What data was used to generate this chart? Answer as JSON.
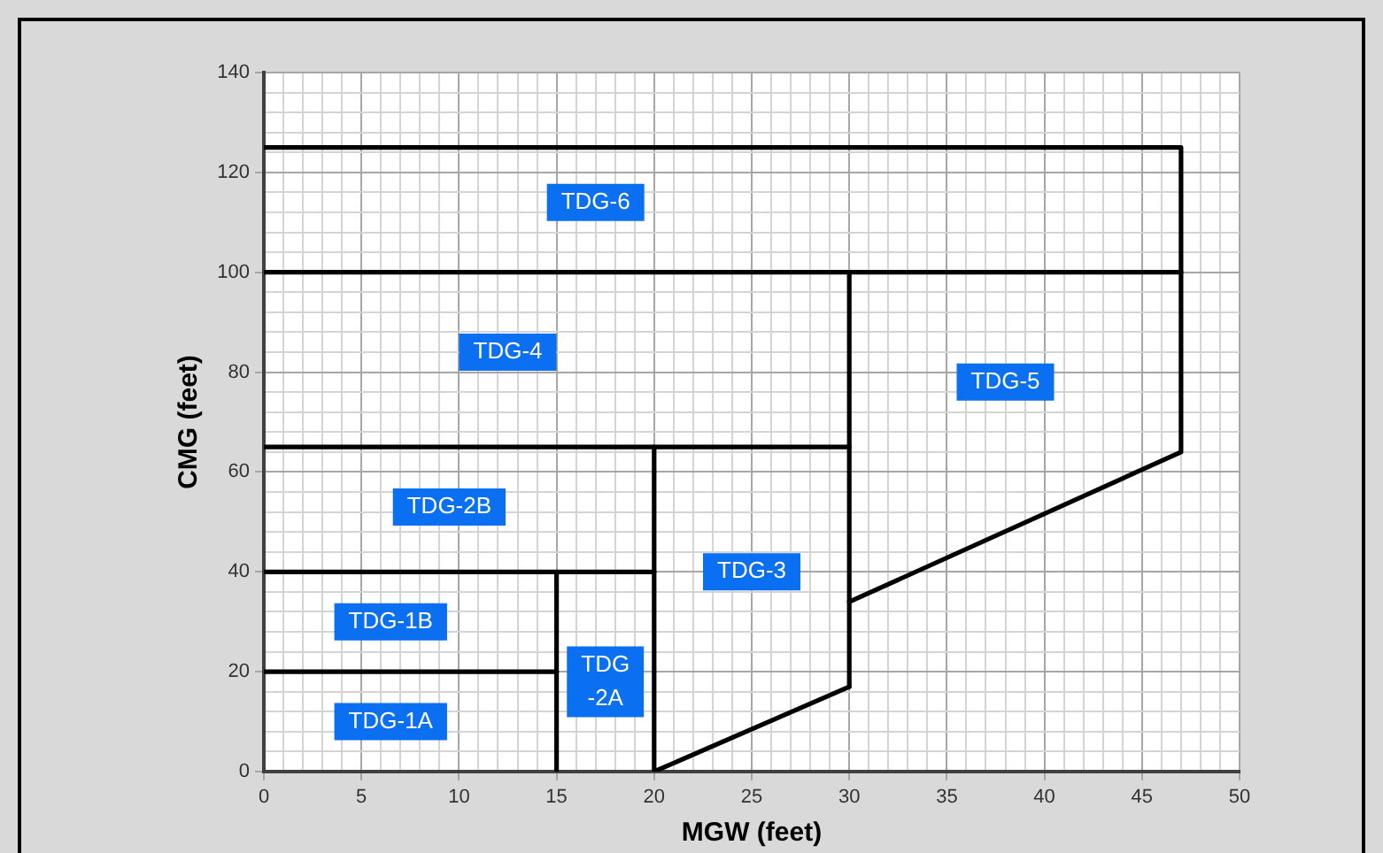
{
  "chart_data": {
    "type": "line",
    "xlabel": "MGW (feet)",
    "ylabel": "CMG (feet)",
    "xlim": [
      0,
      50
    ],
    "ylim": [
      0,
      140
    ],
    "xticks": [
      0,
      {
        "value": 1,
        "label": null
      },
      {
        "value": 2,
        "label": null
      },
      {
        "value": 3,
        "label": null
      },
      {
        "value": 4,
        "label": null
      },
      5,
      {
        "value": 6,
        "label": null
      },
      {
        "value": 7,
        "label": null
      },
      {
        "value": 8,
        "label": null
      },
      {
        "value": 9,
        "label": null
      },
      10,
      {
        "value": 11,
        "label": null
      },
      {
        "value": 12,
        "label": null
      },
      {
        "value": 13,
        "label": null
      },
      {
        "value": 14,
        "label": null
      },
      15,
      {
        "value": 16,
        "label": null
      },
      {
        "value": 17,
        "label": null
      },
      {
        "value": 18,
        "label": null
      },
      {
        "value": 19,
        "label": null
      },
      20,
      {
        "value": 21,
        "label": null
      },
      {
        "value": 22,
        "label": null
      },
      {
        "value": 23,
        "label": null
      },
      {
        "value": 24,
        "label": null
      },
      25,
      {
        "value": 26,
        "label": null
      },
      {
        "value": 27,
        "label": null
      },
      {
        "value": 28,
        "label": null
      },
      {
        "value": 29,
        "label": null
      },
      30,
      {
        "value": 31,
        "label": null
      },
      {
        "value": 32,
        "label": null
      },
      {
        "value": 33,
        "label": null
      },
      {
        "value": 34,
        "label": null
      },
      35,
      {
        "value": 36,
        "label": null
      },
      {
        "value": 37,
        "label": null
      },
      {
        "value": 38,
        "label": null
      },
      {
        "value": 39,
        "label": null
      },
      40,
      {
        "value": 41,
        "label": null
      },
      {
        "value": 42,
        "label": null
      },
      {
        "value": 43,
        "label": null
      },
      {
        "value": 44,
        "label": null
      },
      45,
      {
        "value": 46,
        "label": null
      },
      {
        "value": 47,
        "label": null
      },
      {
        "value": 48,
        "label": null
      },
      {
        "value": 49,
        "label": null
      },
      50
    ],
    "yticks": [
      0,
      {
        "value": 4,
        "label": null
      },
      {
        "value": 8,
        "label": null
      },
      {
        "value": 12,
        "label": null
      },
      {
        "value": 16,
        "label": null
      },
      20,
      {
        "value": 24,
        "label": null
      },
      {
        "value": 28,
        "label": null
      },
      {
        "value": 32,
        "label": null
      },
      {
        "value": 36,
        "label": null
      },
      40,
      {
        "value": 44,
        "label": null
      },
      {
        "value": 48,
        "label": null
      },
      {
        "value": 52,
        "label": null
      },
      {
        "value": 56,
        "label": null
      },
      60,
      {
        "value": 64,
        "label": null
      },
      {
        "value": 68,
        "label": null
      },
      {
        "value": 72,
        "label": null
      },
      {
        "value": 76,
        "label": null
      },
      80,
      {
        "value": 84,
        "label": null
      },
      {
        "value": 88,
        "label": null
      },
      {
        "value": 92,
        "label": null
      },
      {
        "value": 96,
        "label": null
      },
      100,
      {
        "value": 104,
        "label": null
      },
      {
        "value": 108,
        "label": null
      },
      {
        "value": 112,
        "label": null
      },
      {
        "value": 116,
        "label": null
      },
      120,
      {
        "value": 124,
        "label": null
      },
      {
        "value": 128,
        "label": null
      },
      {
        "value": 132,
        "label": null
      },
      {
        "value": 136,
        "label": null
      },
      140
    ],
    "grid": true,
    "legend": false,
    "marker": "none",
    "line_style": "solid",
    "series": [
      {
        "color": "#000000",
        "x": [
          0,
          15
        ],
        "values": [
          20,
          20
        ]
      },
      {
        "color": "#000000",
        "x": [
          0,
          20
        ],
        "values": [
          40,
          40
        ]
      },
      {
        "color": "#000000",
        "x": [
          0,
          30
        ],
        "values": [
          65,
          65
        ]
      },
      {
        "color": "#000000",
        "x": [
          0,
          47
        ],
        "values": [
          100,
          100
        ]
      },
      {
        "color": "#000000",
        "x": [
          0,
          47,
          47,
          30
        ],
        "values": [
          125,
          125,
          64,
          34
        ]
      },
      {
        "color": "#000000",
        "x": [
          30,
          30
        ],
        "values": [
          17,
          100
        ]
      },
      {
        "color": "#000000",
        "x": [
          20,
          20,
          30
        ],
        "values": [
          65,
          0,
          17
        ]
      },
      {
        "color": "#000000",
        "x": [
          15,
          15
        ],
        "values": [
          0,
          40
        ]
      }
    ],
    "annotations": [
      "TDG-6",
      "TDG-4",
      "TDG-5",
      "TDG-2B",
      "TDG-3",
      "TDG-1B",
      "TDG\n-2A",
      "TDG-1A"
    ]
  }
}
